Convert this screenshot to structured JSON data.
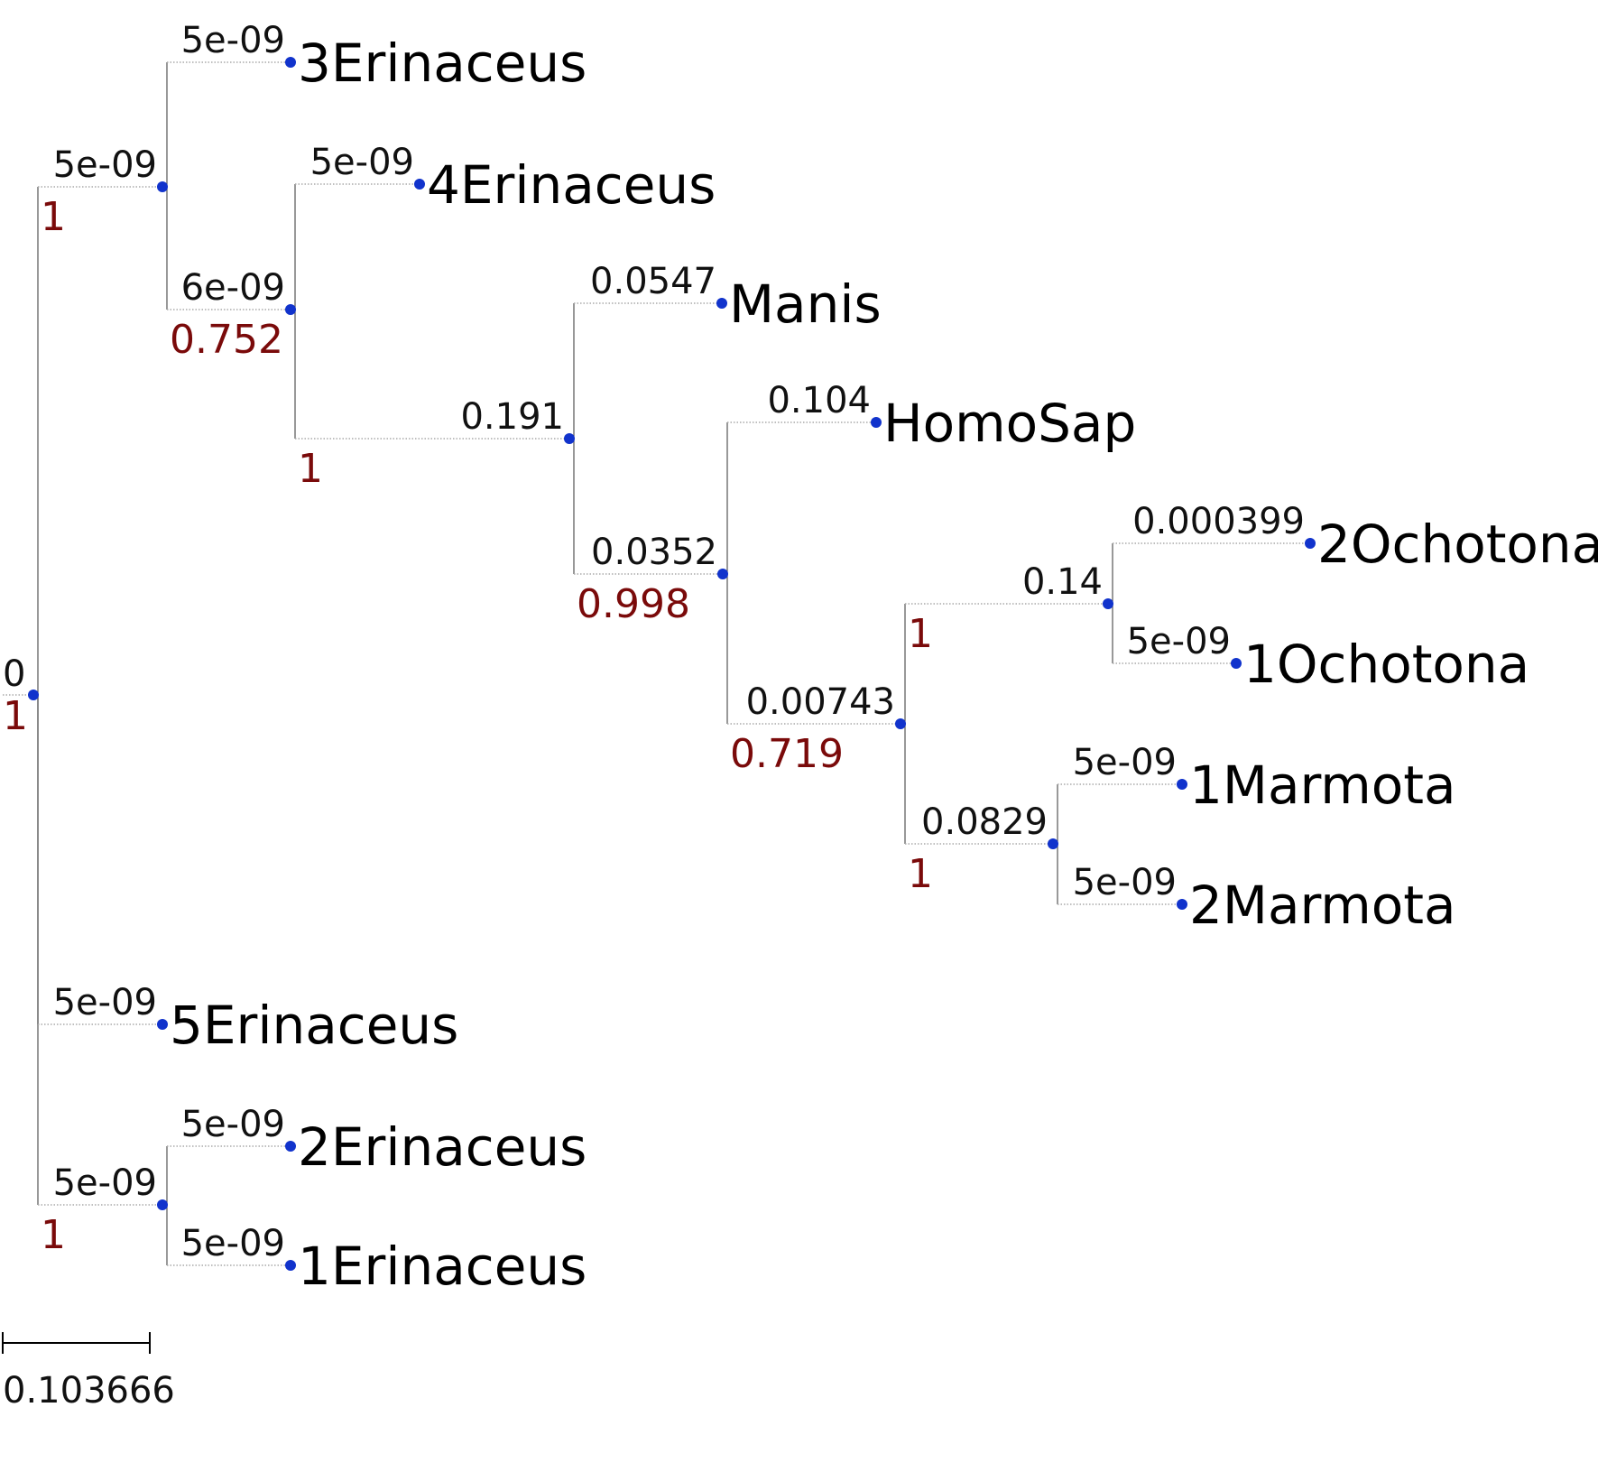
{
  "tree": {
    "root": {
      "length": "0",
      "support": "1"
    },
    "nodes": [
      {
        "id": "n1",
        "length": "5e-09",
        "support": "1"
      },
      {
        "id": "n2",
        "length": "6e-09",
        "support": "0.752"
      },
      {
        "id": "n3",
        "length": "0.191",
        "support": "1"
      },
      {
        "id": "n4",
        "length": "0.0352",
        "support": "0.998"
      },
      {
        "id": "n5",
        "length": "0.00743",
        "support": "0.719"
      },
      {
        "id": "n6",
        "length": "0.14",
        "support": "1"
      },
      {
        "id": "n7",
        "length": "0.0829",
        "support": "1"
      },
      {
        "id": "n8",
        "length": "5e-09",
        "support": "1"
      }
    ],
    "leaves": [
      {
        "id": "l3E",
        "name": "3Erinaceus",
        "length": "5e-09"
      },
      {
        "id": "l4E",
        "name": "4Erinaceus",
        "length": "5e-09"
      },
      {
        "id": "lMan",
        "name": "Manis",
        "length": "0.0547"
      },
      {
        "id": "lHom",
        "name": "HomoSap",
        "length": "0.104"
      },
      {
        "id": "l2O",
        "name": "2Ochotona",
        "length": "0.000399"
      },
      {
        "id": "l1O",
        "name": "1Ochotona",
        "length": "5e-09"
      },
      {
        "id": "l1M",
        "name": "1Marmota",
        "length": "5e-09"
      },
      {
        "id": "l2M",
        "name": "2Marmota",
        "length": "5e-09"
      },
      {
        "id": "l5E",
        "name": "5Erinaceus",
        "length": "5e-09"
      },
      {
        "id": "l2E",
        "name": "2Erinaceus",
        "length": "5e-09"
      },
      {
        "id": "l1E",
        "name": "1Erinaceus",
        "length": "5e-09"
      }
    ],
    "node_color": "#1133cc",
    "support_color": "#7a0a0a"
  },
  "scale_bar": {
    "value": "0.103666"
  }
}
